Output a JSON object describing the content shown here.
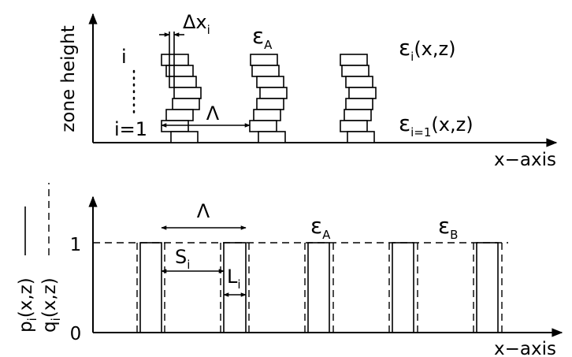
{
  "top_panel": {
    "y_axis_label": "zone height",
    "x_axis_label": "x−axis",
    "index_top": "i",
    "index_bottom": "i=1",
    "dx_label": "Δx",
    "dx_sub": "i",
    "period_label": "Λ",
    "eps_a": "ε",
    "eps_a_sub": "A",
    "eps_i": "ε",
    "eps_i_sub": "i",
    "eps_i_arg": "(x,z)",
    "eps_i1": "ε",
    "eps_i1_sub": "i=1",
    "eps_i1_arg": "(x,z)"
  },
  "bottom_panel": {
    "y_label_p": "p",
    "y_label_p_sub": "i",
    "y_label_p_arg": "(x,z)",
    "y_label_q": "q",
    "y_label_q_sub": "i",
    "y_label_q_arg": "(x,z)",
    "tick_one": "1",
    "tick_zero": "0",
    "x_axis_label": "x−axis",
    "period_label": "Λ",
    "s_label": "S",
    "s_sub": "i",
    "l_label": "L",
    "l_sub": "i",
    "eps_a": "ε",
    "eps_a_sub": "A",
    "eps_b": "ε",
    "eps_b_sub": "B"
  }
}
